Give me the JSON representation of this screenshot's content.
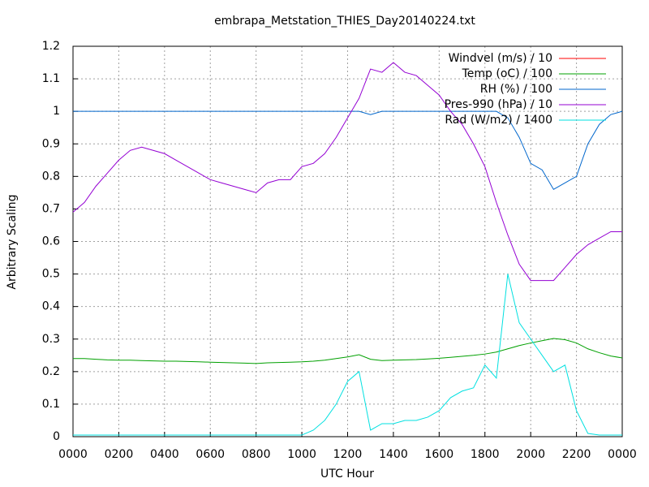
{
  "chart_data": {
    "type": "line",
    "title": "embrapa_Metstation_THIES_Day20140224.txt",
    "x_label": "UTC Hour",
    "y_label": "Arbitrary Scaling",
    "xlim": [
      0,
      24
    ],
    "ylim": [
      0,
      1.2
    ],
    "xticks": [
      {
        "value": 0,
        "label": "0000"
      },
      {
        "value": 2,
        "label": "0200"
      },
      {
        "value": 4,
        "label": "0400"
      },
      {
        "value": 6,
        "label": "0600"
      },
      {
        "value": 8,
        "label": "0800"
      },
      {
        "value": 10,
        "label": "1000"
      },
      {
        "value": 12,
        "label": "1200"
      },
      {
        "value": 14,
        "label": "1400"
      },
      {
        "value": 16,
        "label": "1600"
      },
      {
        "value": 18,
        "label": "1800"
      },
      {
        "value": 20,
        "label": "2000"
      },
      {
        "value": 22,
        "label": "2200"
      },
      {
        "value": 24,
        "label": "0000"
      }
    ],
    "yticks": [
      0,
      0.1,
      0.2,
      0.3,
      0.4,
      0.5,
      0.6,
      0.7,
      0.8,
      0.9,
      1,
      1.1,
      1.2
    ],
    "grid": true,
    "legend_position": "top-right",
    "x": [
      0,
      0.5,
      1,
      1.5,
      2,
      2.5,
      3,
      3.5,
      4,
      4.5,
      5,
      5.5,
      6,
      6.5,
      7,
      7.5,
      8,
      8.5,
      9,
      9.5,
      10,
      10.5,
      11,
      11.5,
      12,
      12.5,
      13,
      13.5,
      14,
      14.5,
      15,
      15.5,
      16,
      16.5,
      17,
      17.5,
      18,
      18.5,
      19,
      19.5,
      20,
      20.5,
      21,
      21.5,
      22,
      22.5,
      23,
      23.5,
      24
    ],
    "series": [
      {
        "name": "Windvel (m/s) / 10",
        "color": "#ff0000",
        "values": [
          null,
          null,
          null,
          null,
          null,
          null,
          null,
          null,
          null,
          null,
          null,
          null,
          null,
          null,
          null,
          null,
          null,
          null,
          null,
          null,
          null,
          null,
          null,
          null,
          null,
          null,
          null,
          null,
          null,
          null,
          null,
          null,
          null,
          null,
          null,
          null,
          null,
          null,
          null,
          null,
          null,
          null,
          null,
          null,
          null,
          null,
          null,
          null,
          null
        ]
      },
      {
        "name": "Temp (oC) / 100",
        "color": "#00a000",
        "values": [
          0.24,
          0.24,
          0.238,
          0.236,
          0.235,
          0.235,
          0.234,
          0.233,
          0.232,
          0.232,
          0.231,
          0.23,
          0.229,
          0.228,
          0.227,
          0.226,
          0.225,
          0.227,
          0.228,
          0.229,
          0.23,
          0.232,
          0.235,
          0.24,
          0.245,
          0.252,
          0.238,
          0.234,
          0.235,
          0.236,
          0.237,
          0.239,
          0.241,
          0.244,
          0.247,
          0.25,
          0.254,
          0.26,
          0.27,
          0.28,
          0.288,
          0.295,
          0.302,
          0.298,
          0.288,
          0.27,
          0.258,
          0.248,
          0.242
        ]
      },
      {
        "name": "RH (%) / 100",
        "color": "#0066cc",
        "values": [
          1,
          1,
          1,
          1,
          1,
          1,
          1,
          1,
          1,
          1,
          1,
          1,
          1,
          1,
          1,
          1,
          1,
          1,
          1,
          1,
          1,
          1,
          1,
          1,
          1,
          1,
          0.99,
          1,
          1,
          1,
          1,
          1,
          1,
          1,
          1,
          1,
          1,
          1,
          0.98,
          0.92,
          0.84,
          0.82,
          0.76,
          0.78,
          0.8,
          0.9,
          0.96,
          0.99,
          1
        ]
      },
      {
        "name": "Pres-990 (hPa) / 10",
        "color": "#9400d3",
        "values": [
          0.69,
          0.72,
          0.77,
          0.81,
          0.85,
          0.88,
          0.89,
          0.88,
          0.87,
          0.85,
          0.83,
          0.81,
          0.79,
          0.78,
          0.77,
          0.76,
          0.75,
          0.78,
          0.79,
          0.79,
          0.83,
          0.84,
          0.87,
          0.92,
          0.98,
          1.04,
          1.13,
          1.12,
          1.15,
          1.12,
          1.11,
          1.08,
          1.05,
          1,
          0.96,
          0.9,
          0.83,
          0.72,
          0.62,
          0.53,
          0.48,
          0.48,
          0.48,
          0.52,
          0.56,
          0.59,
          0.61,
          0.63,
          0.63
        ]
      },
      {
        "name": "Rad (W/m2) / 1400",
        "color": "#00e0e0",
        "values": [
          0.005,
          0.005,
          0.005,
          0.005,
          0.005,
          0.005,
          0.005,
          0.005,
          0.005,
          0.005,
          0.005,
          0.005,
          0.005,
          0.005,
          0.005,
          0.005,
          0.005,
          0.005,
          0.005,
          0.005,
          0.005,
          0.02,
          0.05,
          0.1,
          0.17,
          0.2,
          0.02,
          0.04,
          0.04,
          0.05,
          0.05,
          0.06,
          0.08,
          0.12,
          0.14,
          0.15,
          0.22,
          0.18,
          0.5,
          0.35,
          0.3,
          0.25,
          0.2,
          0.22,
          0.08,
          0.01,
          0.005,
          0.005,
          0.005
        ]
      }
    ]
  }
}
